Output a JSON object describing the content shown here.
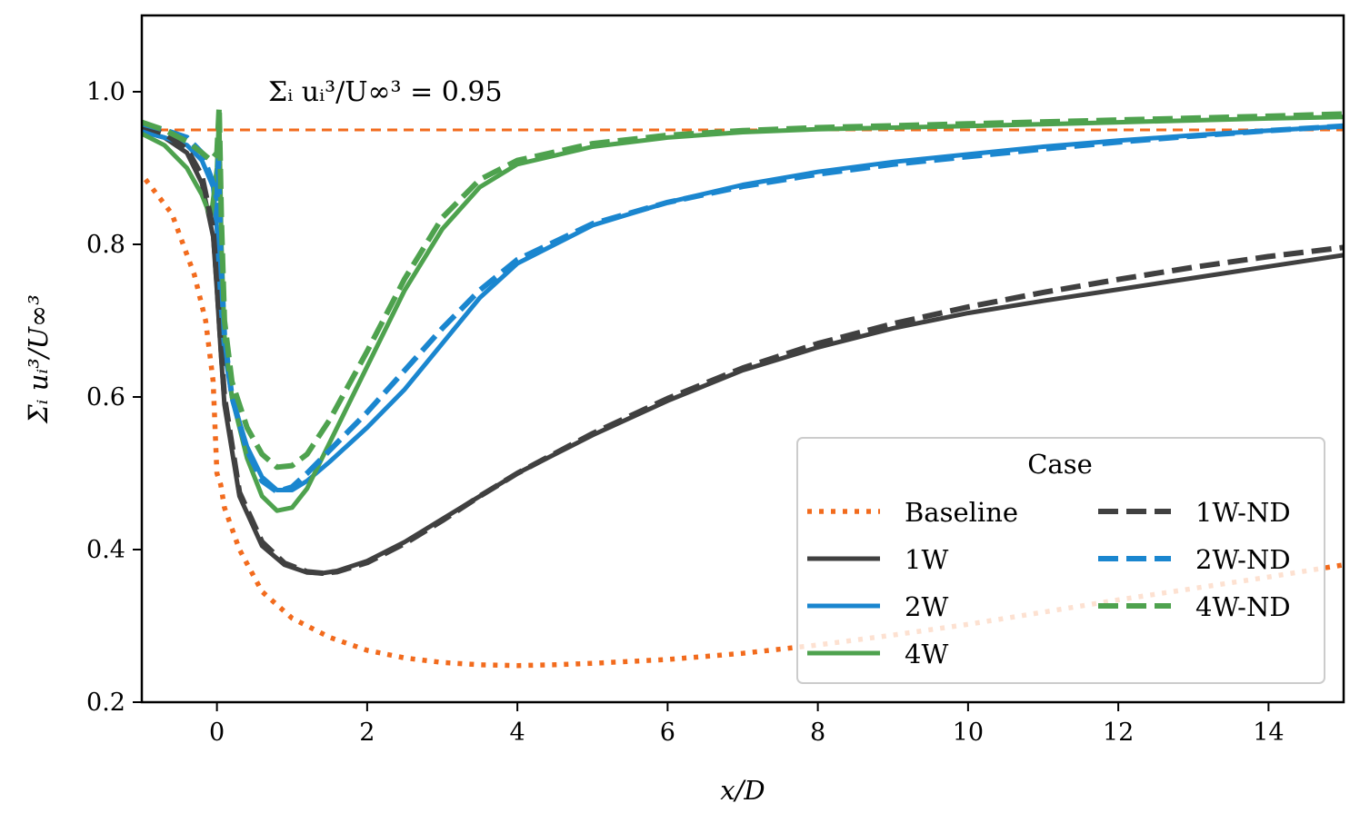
{
  "chart_data": {
    "type": "line",
    "title": "",
    "xlabel": "x/D",
    "ylabel": "Σᵢ uᵢ³/U∞³",
    "xlim": [
      -1,
      15
    ],
    "ylim": [
      0.2,
      1.1
    ],
    "x_ticks": [
      0,
      2,
      4,
      6,
      8,
      10,
      12,
      14
    ],
    "x_tick_labels": [
      "0",
      "2",
      "4",
      "6",
      "8",
      "10",
      "12",
      "14"
    ],
    "y_ticks": [
      0.2,
      0.4,
      0.6,
      0.8,
      1.0
    ],
    "y_tick_labels": [
      "0.2",
      "0.4",
      "0.6",
      "0.8",
      "1.0"
    ],
    "grid": false,
    "reference_line": {
      "y": 0.95,
      "color": "#f26b1d",
      "style": "dashed"
    },
    "annotation": {
      "text": "Σᵢ uᵢ³/U∞³ = 0.95",
      "x": 0.7,
      "y": 0.99
    },
    "legend": {
      "title": "Case",
      "placement": "lower-right",
      "columns": 2
    },
    "series": [
      {
        "name": "Baseline",
        "color": "#f26b1d",
        "style": "dotted",
        "x": [
          -0.95,
          -0.6,
          -0.3,
          -0.15,
          -0.05,
          0,
          0.05,
          0.1,
          0.3,
          0.6,
          1.0,
          1.5,
          2.0,
          2.5,
          3.0,
          3.5,
          4.0,
          4.5,
          5.0,
          6.0,
          7.0,
          8.0,
          9.0,
          10.0,
          11.0,
          12.0,
          13.0,
          14.0,
          15.0
        ],
        "y": [
          0.885,
          0.84,
          0.76,
          0.7,
          0.62,
          0.5,
          0.485,
          0.455,
          0.4,
          0.345,
          0.31,
          0.285,
          0.268,
          0.258,
          0.252,
          0.249,
          0.248,
          0.249,
          0.251,
          0.256,
          0.264,
          0.275,
          0.288,
          0.302,
          0.318,
          0.334,
          0.349,
          0.364,
          0.38
        ]
      },
      {
        "name": "1W",
        "color": "#404040",
        "style": "solid",
        "x": [
          -1.0,
          -0.7,
          -0.4,
          -0.2,
          -0.05,
          0,
          0.05,
          0.1,
          0.3,
          0.6,
          0.9,
          1.2,
          1.4,
          1.6,
          2.0,
          2.5,
          3.0,
          3.5,
          4.0,
          5.0,
          6.0,
          7.0,
          8.0,
          9.0,
          10.0,
          11.0,
          12.0,
          13.0,
          14.0,
          15.0
        ],
        "y": [
          0.948,
          0.94,
          0.92,
          0.88,
          0.81,
          0.74,
          0.66,
          0.59,
          0.47,
          0.405,
          0.38,
          0.37,
          0.369,
          0.372,
          0.385,
          0.41,
          0.44,
          0.47,
          0.5,
          0.55,
          0.595,
          0.635,
          0.665,
          0.69,
          0.71,
          0.726,
          0.741,
          0.756,
          0.771,
          0.786
        ]
      },
      {
        "name": "2W",
        "color": "#1a86cf",
        "style": "solid",
        "x": [
          -1.0,
          -0.7,
          -0.4,
          -0.2,
          -0.05,
          0.0,
          0.02,
          0.05,
          0.1,
          0.2,
          0.4,
          0.6,
          0.8,
          1.0,
          1.2,
          1.5,
          2.0,
          2.5,
          3.0,
          3.5,
          4.0,
          5.0,
          6.0,
          7.0,
          8.0,
          9.0,
          10.0,
          11.0,
          12.0,
          13.0,
          14.0,
          15.0
        ],
        "y": [
          0.948,
          0.94,
          0.93,
          0.91,
          0.875,
          0.82,
          0.78,
          0.72,
          0.66,
          0.6,
          0.535,
          0.495,
          0.478,
          0.478,
          0.49,
          0.515,
          0.56,
          0.61,
          0.67,
          0.73,
          0.775,
          0.825,
          0.855,
          0.878,
          0.895,
          0.908,
          0.918,
          0.928,
          0.936,
          0.943,
          0.949,
          0.955
        ]
      },
      {
        "name": "4W",
        "color": "#4ea24e",
        "style": "solid",
        "x": [
          -1.0,
          -0.7,
          -0.4,
          -0.2,
          -0.08,
          0.0,
          0.03,
          0.06,
          0.1,
          0.2,
          0.4,
          0.6,
          0.8,
          1.0,
          1.2,
          1.5,
          2.0,
          2.5,
          3.0,
          3.5,
          4.0,
          5.0,
          6.0,
          7.0,
          8.0,
          10.0,
          12.0,
          14.0,
          15.0
        ],
        "y": [
          0.945,
          0.93,
          0.9,
          0.865,
          0.835,
          0.9,
          0.97,
          0.8,
          0.68,
          0.6,
          0.52,
          0.47,
          0.451,
          0.455,
          0.48,
          0.54,
          0.64,
          0.74,
          0.82,
          0.875,
          0.905,
          0.928,
          0.94,
          0.947,
          0.951,
          0.955,
          0.96,
          0.965,
          0.967
        ]
      },
      {
        "name": "1W-ND",
        "color": "#404040",
        "style": "dashed",
        "x": [
          -1.0,
          -0.7,
          -0.4,
          -0.2,
          -0.05,
          0,
          0.05,
          0.1,
          0.3,
          0.6,
          0.9,
          1.2,
          1.4,
          1.6,
          2.0,
          2.5,
          3.0,
          3.5,
          4.0,
          5.0,
          6.0,
          7.0,
          8.0,
          9.0,
          10.0,
          11.0,
          12.0,
          13.0,
          14.0,
          15.0
        ],
        "y": [
          0.955,
          0.945,
          0.925,
          0.89,
          0.82,
          0.75,
          0.67,
          0.6,
          0.475,
          0.41,
          0.382,
          0.371,
          0.369,
          0.371,
          0.383,
          0.408,
          0.438,
          0.47,
          0.5,
          0.552,
          0.598,
          0.638,
          0.67,
          0.696,
          0.718,
          0.737,
          0.754,
          0.77,
          0.784,
          0.796
        ]
      },
      {
        "name": "2W-ND",
        "color": "#1a86cf",
        "style": "dashed",
        "x": [
          -1.0,
          -0.7,
          -0.4,
          -0.2,
          -0.05,
          0.0,
          0.02,
          0.05,
          0.1,
          0.2,
          0.4,
          0.6,
          0.8,
          1.0,
          1.2,
          1.5,
          2.0,
          2.5,
          3.0,
          3.5,
          4.0,
          5.0,
          6.0,
          7.0,
          8.0,
          9.0,
          10.0,
          11.0,
          12.0,
          13.0,
          14.0,
          15.0
        ],
        "y": [
          0.958,
          0.95,
          0.94,
          0.92,
          0.88,
          0.86,
          0.91,
          0.78,
          0.68,
          0.6,
          0.53,
          0.49,
          0.476,
          0.482,
          0.5,
          0.53,
          0.58,
          0.635,
          0.69,
          0.74,
          0.78,
          0.827,
          0.855,
          0.876,
          0.892,
          0.905,
          0.915,
          0.925,
          0.934,
          0.942,
          0.949,
          0.955
        ]
      },
      {
        "name": "4W-ND",
        "color": "#4ea24e",
        "style": "dashed",
        "x": [
          -1.0,
          -0.7,
          -0.4,
          -0.2,
          -0.08,
          0.0,
          0.03,
          0.06,
          0.1,
          0.2,
          0.4,
          0.6,
          0.8,
          1.0,
          1.2,
          1.5,
          2.0,
          2.5,
          3.0,
          3.5,
          4.0,
          5.0,
          6.0,
          7.0,
          8.0,
          10.0,
          12.0,
          14.0,
          15.0
        ],
        "y": [
          0.96,
          0.95,
          0.935,
          0.92,
          0.91,
          0.92,
          0.98,
          0.83,
          0.7,
          0.62,
          0.56,
          0.525,
          0.508,
          0.51,
          0.525,
          0.57,
          0.66,
          0.755,
          0.835,
          0.885,
          0.91,
          0.932,
          0.943,
          0.949,
          0.953,
          0.958,
          0.963,
          0.968,
          0.971
        ]
      }
    ]
  }
}
